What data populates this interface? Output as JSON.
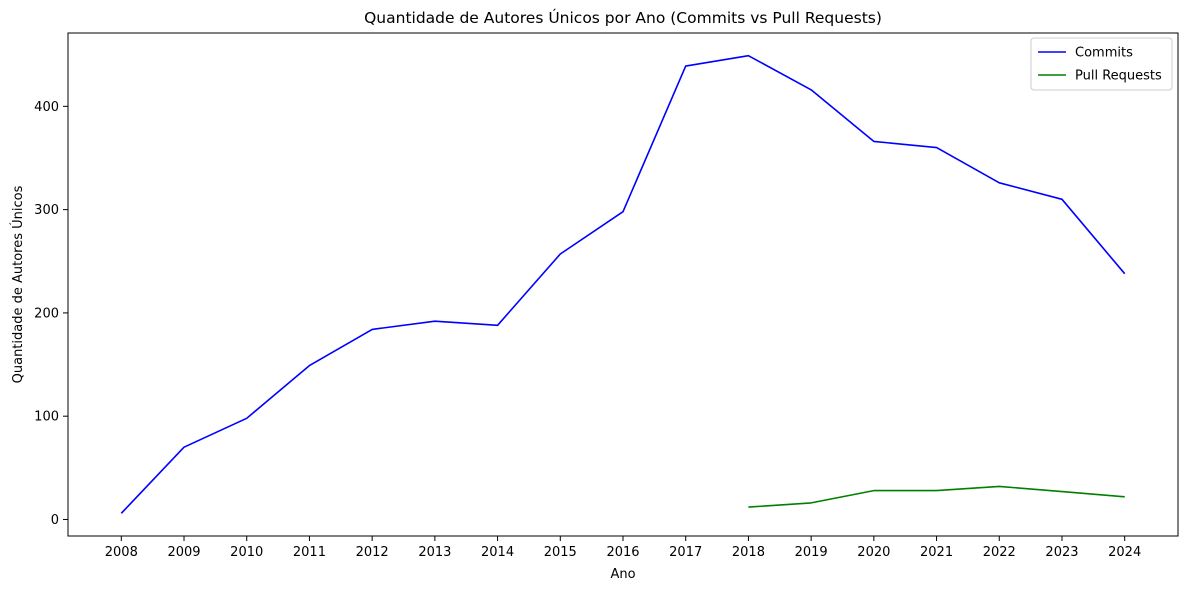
{
  "chart_data": {
    "type": "line",
    "title": "Quantidade de Autores Únicos por Ano (Commits vs Pull Requests)",
    "xlabel": "Ano",
    "ylabel": "Quantidade de Autores Únicos",
    "x": [
      2008,
      2009,
      2010,
      2011,
      2012,
      2013,
      2014,
      2015,
      2016,
      2017,
      2018,
      2019,
      2020,
      2021,
      2022,
      2023,
      2024
    ],
    "xticks": [
      "2008",
      "2009",
      "2010",
      "2011",
      "2012",
      "2013",
      "2014",
      "2015",
      "2016",
      "2017",
      "2018",
      "2019",
      "2020",
      "2021",
      "2022",
      "2023",
      "2024"
    ],
    "yticks": [
      "0",
      "100",
      "200",
      "300",
      "400"
    ],
    "ylim": [
      -16,
      471
    ],
    "xlim": [
      2007.15,
      2024.85
    ],
    "grid": false,
    "legend_position": "top-right",
    "series": [
      {
        "name": "Commits",
        "color": "#0000ff",
        "x": [
          2008,
          2009,
          2010,
          2011,
          2012,
          2013,
          2014,
          2015,
          2016,
          2017,
          2018,
          2019,
          2020,
          2021,
          2022,
          2023,
          2024
        ],
        "values": [
          6,
          70,
          98,
          149,
          184,
          192,
          188,
          257,
          298,
          439,
          449,
          416,
          366,
          360,
          326,
          310,
          238
        ]
      },
      {
        "name": "Pull Requests",
        "color": "#008000",
        "x": [
          2018,
          2019,
          2020,
          2021,
          2022,
          2023,
          2024
        ],
        "values": [
          12,
          16,
          28,
          28,
          32,
          27,
          22
        ]
      }
    ]
  }
}
